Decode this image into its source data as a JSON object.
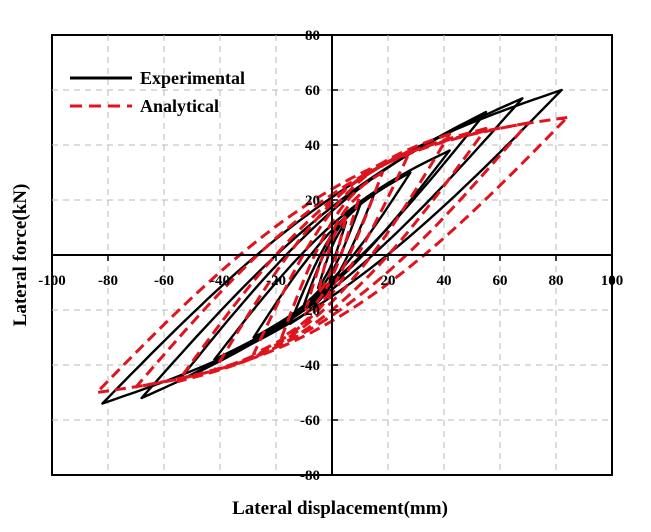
{
  "chart_data": {
    "type": "line",
    "xlabel": "Lateral displacement(mm)",
    "ylabel": "Lateral force(kN)",
    "xlim": [
      -100,
      100
    ],
    "ylim": [
      -80,
      80
    ],
    "xticks": [
      -100,
      -80,
      -60,
      -40,
      -20,
      0,
      20,
      40,
      60,
      80,
      100
    ],
    "yticks": [
      -80,
      -60,
      -40,
      -20,
      20,
      40,
      60,
      80
    ],
    "grid": true,
    "legend_position": "top-left",
    "series": [
      {
        "name": "Experimental",
        "color": "#000000",
        "style": "solid",
        "loops": [
          {
            "amp": 5,
            "pos": 12,
            "neg": -12,
            "w": 3
          },
          {
            "amp": 10,
            "pos": 18,
            "neg": -18,
            "w": 6
          },
          {
            "amp": 15,
            "pos": 22,
            "neg": -25,
            "w": 9
          },
          {
            "amp": 28,
            "pos": 30,
            "neg": -30,
            "w": 9
          },
          {
            "amp": 42,
            "pos": 38,
            "neg": -38,
            "w": 11
          },
          {
            "amp": 55,
            "pos": 52,
            "neg": -46,
            "w": 13
          },
          {
            "amp": 68,
            "pos": 57,
            "neg": -52,
            "w": 15
          },
          {
            "amp": 82,
            "pos": 60,
            "neg": -54,
            "w": 18
          }
        ]
      },
      {
        "name": "Analytical",
        "color": "#e0141e",
        "style": "dashed",
        "loops": [
          {
            "amp": 5,
            "pos": 14,
            "neg": -14,
            "w": 5
          },
          {
            "amp": 10,
            "pos": 22,
            "neg": -22,
            "w": 8
          },
          {
            "amp": 18,
            "pos": 30,
            "neg": -30,
            "w": 12
          },
          {
            "amp": 28,
            "pos": 38,
            "neg": -36,
            "w": 15
          },
          {
            "amp": 42,
            "pos": 44,
            "neg": -42,
            "w": 18
          },
          {
            "amp": 55,
            "pos": 46,
            "neg": -46,
            "w": 20
          },
          {
            "amp": 70,
            "pos": 48,
            "neg": -48,
            "w": 22
          },
          {
            "amp": 84,
            "pos": 50,
            "neg": -50,
            "w": 24
          }
        ]
      }
    ]
  }
}
